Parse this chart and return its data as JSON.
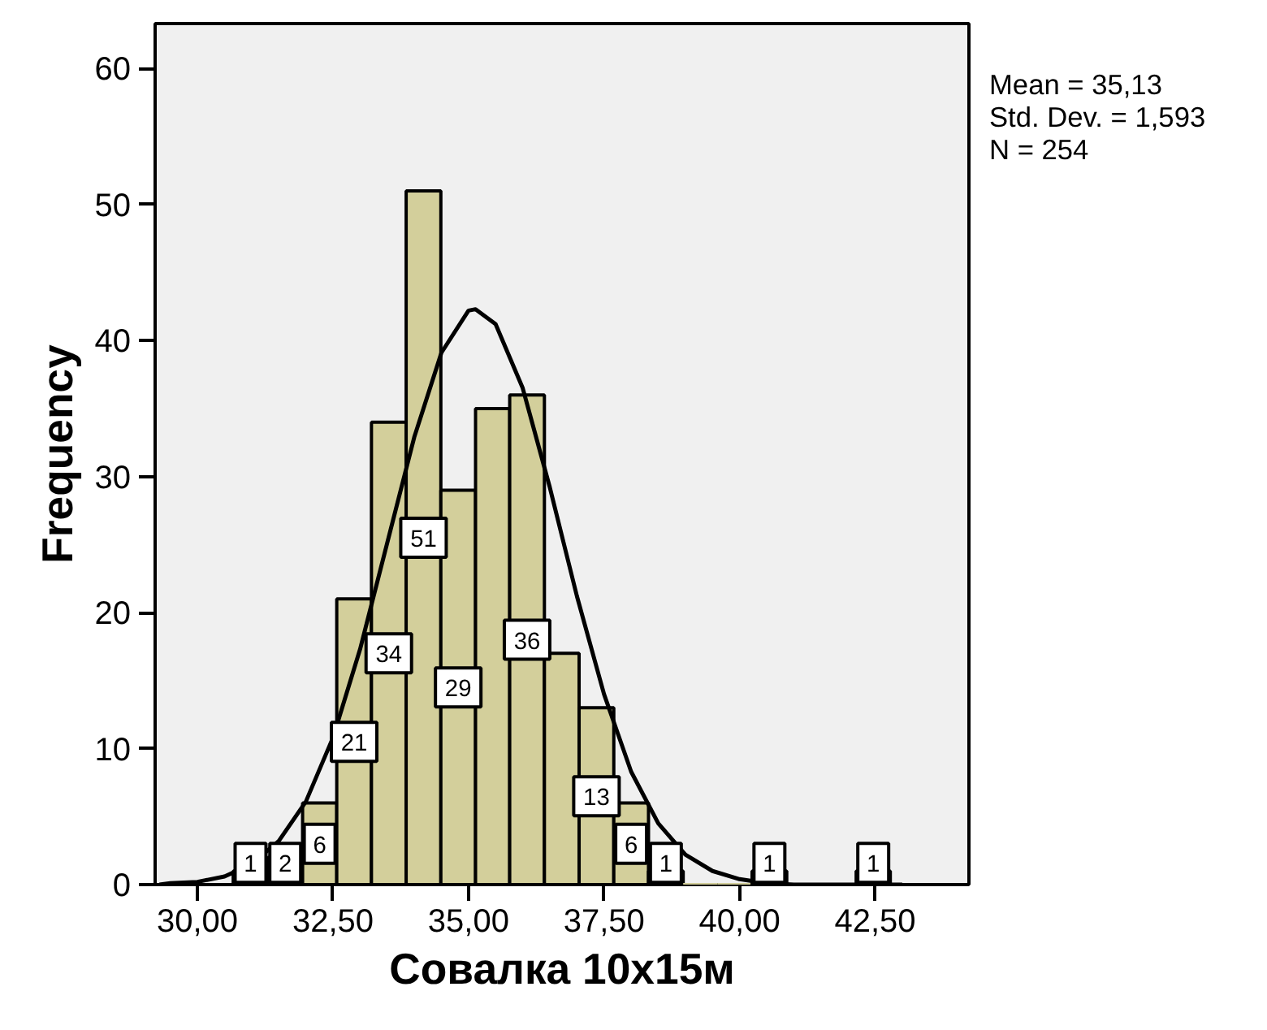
{
  "chart_data": {
    "type": "histogram",
    "xlabel": "Совалка 10x15м",
    "ylabel": "Frequency",
    "bins": [
      30.66,
      31.3,
      31.94,
      32.57,
      33.21,
      33.85,
      34.49,
      35.13,
      35.76,
      36.4,
      37.04,
      37.68,
      38.32,
      38.96,
      39.59,
      40.23,
      40.87,
      41.51,
      42.15,
      42.78
    ],
    "values": [
      1,
      2,
      6,
      21,
      34,
      51,
      29,
      35,
      36,
      17,
      13,
      6,
      1,
      0,
      0,
      1,
      0,
      0,
      1
    ],
    "value_labels": [
      "1",
      "2",
      "6",
      "21",
      "34",
      "51",
      "29",
      null,
      "36",
      null,
      "13",
      "6",
      "1",
      null,
      null,
      "1",
      null,
      null,
      "1"
    ],
    "color": "#d3cf9b",
    "series": [
      {
        "type": "line",
        "color": "#000000",
        "x": [
          29.3,
          29.5,
          30,
          30.5,
          31,
          31.5,
          32,
          32.5,
          33,
          33.5,
          34,
          34.5,
          35,
          35.13,
          35.5,
          36,
          36.5,
          37,
          37.5,
          38,
          38.5,
          39,
          39.5,
          40,
          40.5,
          41,
          42,
          43
        ],
        "values": [
          0,
          0.1,
          0.2,
          0.6,
          1.5,
          3.2,
          6.1,
          10.8,
          17.3,
          25.1,
          32.9,
          39.1,
          42.2,
          42.3,
          41.2,
          36.5,
          29.2,
          21.2,
          14.0,
          8.3,
          4.5,
          2.2,
          1.0,
          0.4,
          0.1,
          0,
          0,
          0
        ]
      }
    ],
    "xlim": [
      29.22,
      44.23
    ],
    "ylim": [
      0,
      63.3
    ],
    "xticks": [
      {
        "value": 30,
        "label": "30,00"
      },
      {
        "value": 32.5,
        "label": "32,50"
      },
      {
        "value": 35,
        "label": "35,00"
      },
      {
        "value": 37.5,
        "label": "37,50"
      },
      {
        "value": 40,
        "label": "40,00"
      },
      {
        "value": 42.5,
        "label": "42,50"
      }
    ],
    "yticks": [
      0,
      10,
      20,
      30,
      40,
      50,
      60
    ],
    "grid": false,
    "annotations": [
      "Mean = 35,13",
      "Std. Dev. = 1,593",
      "N = 254"
    ]
  }
}
